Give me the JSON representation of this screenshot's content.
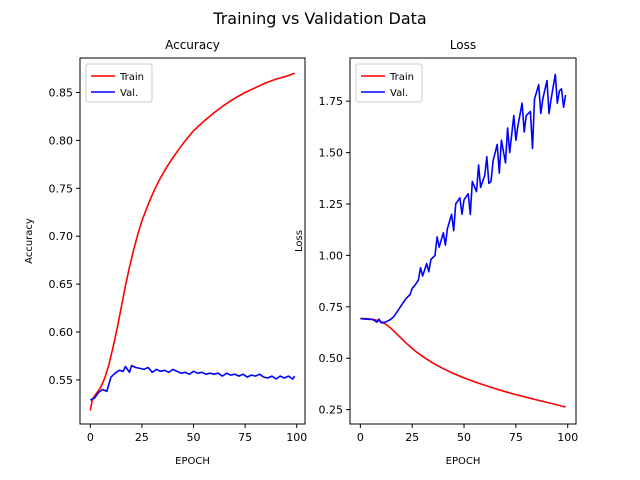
{
  "figure": {
    "suptitle": "Training vs Validation Data"
  },
  "chart_data": [
    {
      "type": "line",
      "title": "Accuracy",
      "xlabel": "EPOCH",
      "ylabel": "Accuracy",
      "xlim": [
        -5,
        104
      ],
      "ylim": [
        0.504,
        0.886
      ],
      "xticks": [
        0,
        25,
        50,
        75,
        100
      ],
      "xtick_labels": [
        "0",
        "25",
        "50",
        "75",
        "100"
      ],
      "yticks": [
        0.55,
        0.6,
        0.65,
        0.7,
        0.75,
        0.8,
        0.85
      ],
      "ytick_labels": [
        "0.55",
        "0.60",
        "0.65",
        "0.70",
        "0.75",
        "0.80",
        "0.85"
      ],
      "legend": "top-left",
      "grid": false,
      "series": [
        {
          "name": "Train",
          "color": "#ff0000",
          "x": [
            0,
            1,
            3,
            5,
            7,
            9,
            11,
            13,
            15,
            17,
            19,
            21,
            23,
            25,
            28,
            31,
            34,
            37,
            40,
            45,
            50,
            55,
            60,
            65,
            70,
            75,
            80,
            85,
            90,
            95,
            99
          ],
          "y": [
            0.518,
            0.53,
            0.536,
            0.542,
            0.552,
            0.566,
            0.584,
            0.604,
            0.626,
            0.648,
            0.668,
            0.686,
            0.702,
            0.716,
            0.733,
            0.748,
            0.761,
            0.772,
            0.782,
            0.797,
            0.81,
            0.82,
            0.829,
            0.837,
            0.844,
            0.85,
            0.855,
            0.86,
            0.864,
            0.867,
            0.87
          ]
        },
        {
          "name": "Val.",
          "color": "#0000ff",
          "x": [
            0,
            2,
            4,
            6,
            8,
            10,
            12,
            14,
            16,
            17,
            19,
            20,
            22,
            24,
            26,
            28,
            30,
            32,
            34,
            36,
            38,
            40,
            42,
            44,
            46,
            48,
            50,
            52,
            54,
            56,
            58,
            60,
            62,
            64,
            66,
            68,
            70,
            72,
            74,
            76,
            78,
            80,
            82,
            84,
            86,
            88,
            90,
            92,
            94,
            96,
            98,
            99
          ],
          "y": [
            0.529,
            0.531,
            0.537,
            0.54,
            0.538,
            0.553,
            0.557,
            0.56,
            0.559,
            0.564,
            0.558,
            0.565,
            0.563,
            0.562,
            0.561,
            0.563,
            0.558,
            0.561,
            0.559,
            0.56,
            0.558,
            0.561,
            0.559,
            0.557,
            0.558,
            0.556,
            0.559,
            0.557,
            0.558,
            0.556,
            0.557,
            0.556,
            0.557,
            0.554,
            0.557,
            0.555,
            0.556,
            0.554,
            0.556,
            0.553,
            0.555,
            0.554,
            0.556,
            0.553,
            0.552,
            0.554,
            0.551,
            0.554,
            0.552,
            0.554,
            0.551,
            0.554
          ]
        }
      ]
    },
    {
      "type": "line",
      "title": "Loss",
      "xlabel": "EPOCH",
      "ylabel": "Loss",
      "xlim": [
        -5,
        104
      ],
      "ylim": [
        0.18,
        1.96
      ],
      "xticks": [
        0,
        25,
        50,
        75,
        100
      ],
      "xtick_labels": [
        "0",
        "25",
        "50",
        "75",
        "100"
      ],
      "yticks": [
        0.25,
        0.5,
        0.75,
        1.0,
        1.25,
        1.5,
        1.75
      ],
      "ytick_labels": [
        "0.25",
        "0.50",
        "0.75",
        "1.00",
        "1.25",
        "1.50",
        "1.75"
      ],
      "legend": "top-left",
      "grid": false,
      "series": [
        {
          "name": "Train",
          "color": "#ff0000",
          "x": [
            0,
            3,
            6,
            9,
            12,
            15,
            18,
            21,
            24,
            27,
            30,
            35,
            40,
            45,
            50,
            55,
            60,
            65,
            70,
            75,
            80,
            85,
            90,
            95,
            99
          ],
          "y": [
            0.693,
            0.692,
            0.689,
            0.682,
            0.667,
            0.643,
            0.614,
            0.584,
            0.556,
            0.531,
            0.509,
            0.476,
            0.449,
            0.425,
            0.404,
            0.385,
            0.368,
            0.352,
            0.337,
            0.323,
            0.31,
            0.297,
            0.285,
            0.273,
            0.262
          ]
        },
        {
          "name": "Val.",
          "color": "#0000ff",
          "x": [
            0,
            2,
            4,
            6,
            8,
            9,
            10,
            12,
            14,
            16,
            18,
            20,
            22,
            24,
            25,
            26,
            28,
            29,
            30,
            32,
            33,
            34,
            36,
            37,
            38,
            40,
            41,
            42,
            44,
            45,
            46,
            48,
            49,
            50,
            52,
            53,
            54,
            56,
            57,
            58,
            60,
            61,
            62,
            63,
            64,
            66,
            67,
            68,
            70,
            71,
            72,
            74,
            75,
            76,
            78,
            79,
            80,
            82,
            83,
            84,
            86,
            87,
            88,
            90,
            91,
            92,
            94,
            95,
            96,
            97,
            98,
            99
          ],
          "y": [
            0.693,
            0.69,
            0.689,
            0.688,
            0.675,
            0.69,
            0.672,
            0.675,
            0.685,
            0.7,
            0.73,
            0.76,
            0.79,
            0.81,
            0.84,
            0.85,
            0.88,
            0.94,
            0.9,
            0.96,
            0.92,
            0.98,
            1.0,
            1.09,
            1.04,
            1.11,
            1.05,
            1.13,
            1.2,
            1.12,
            1.25,
            1.28,
            1.2,
            1.27,
            1.3,
            1.2,
            1.36,
            1.31,
            1.44,
            1.33,
            1.39,
            1.48,
            1.35,
            1.36,
            1.46,
            1.54,
            1.4,
            1.56,
            1.45,
            1.62,
            1.5,
            1.68,
            1.56,
            1.63,
            1.74,
            1.6,
            1.68,
            1.7,
            1.52,
            1.76,
            1.83,
            1.69,
            1.76,
            1.85,
            1.69,
            1.76,
            1.88,
            1.74,
            1.8,
            1.81,
            1.72,
            1.78
          ]
        }
      ]
    }
  ]
}
